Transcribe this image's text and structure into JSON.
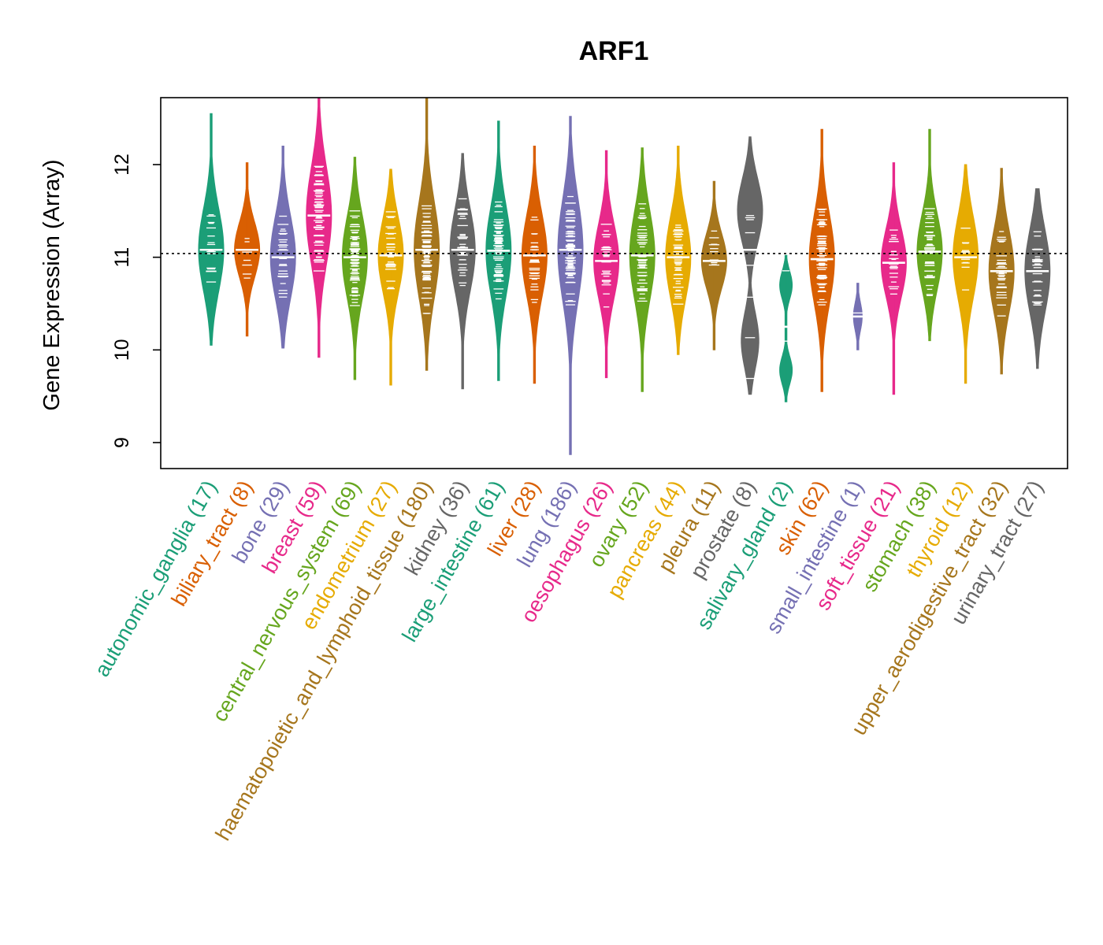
{
  "chart_data": {
    "type": "violin",
    "title": "ARF1",
    "xlabel": "",
    "ylabel": "Gene Expression (Array)",
    "ylim": [
      8.7,
      12.72
    ],
    "yticks": [
      9,
      10,
      11,
      12
    ],
    "yticklabels": [
      "9",
      "10",
      "11",
      "12"
    ],
    "reference_line": 11.04,
    "grid": false,
    "legend": "none",
    "categories": [
      {
        "name": "autonomic_ganglia",
        "n": 17,
        "label": "autonomic_ganglia (17)",
        "color": "#1b9e77",
        "min": 10.05,
        "max": 12.55,
        "median": 11.08,
        "q1": 10.75,
        "q3": 11.35
      },
      {
        "name": "biliary_tract",
        "n": 8,
        "label": "biliary_tract (8)",
        "color": "#d95f02",
        "min": 10.15,
        "max": 12.02,
        "median": 11.08,
        "q1": 10.85,
        "q3": 11.25
      },
      {
        "name": "bone",
        "n": 29,
        "label": "bone (29)",
        "color": "#7570b3",
        "min": 10.02,
        "max": 12.2,
        "median": 11.0,
        "q1": 10.7,
        "q3": 11.3
      },
      {
        "name": "breast",
        "n": 59,
        "label": "breast (59)",
        "color": "#e7298a",
        "min": 9.92,
        "max": 12.72,
        "median": 11.45,
        "q1": 11.1,
        "q3": 11.8
      },
      {
        "name": "central_nervous_system",
        "n": 69,
        "label": "central_nervous_system (69)",
        "color": "#66a61e",
        "min": 9.68,
        "max": 12.08,
        "median": 11.0,
        "q1": 10.7,
        "q3": 11.3
      },
      {
        "name": "endometrium",
        "n": 27,
        "label": "endometrium (27)",
        "color": "#e6ab02",
        "min": 9.62,
        "max": 11.95,
        "median": 11.02,
        "q1": 10.75,
        "q3": 11.3
      },
      {
        "name": "haematopoietic_and_lymphoid_tissue",
        "n": 180,
        "label": "haematopoietic_and_lymphoid_tissue (180)",
        "color": "#a6761d",
        "min": 9.78,
        "max": 12.72,
        "median": 11.08,
        "q1": 10.7,
        "q3": 11.4
      },
      {
        "name": "kidney",
        "n": 36,
        "label": "kidney (36)",
        "color": "#666666",
        "min": 9.58,
        "max": 12.12,
        "median": 11.08,
        "q1": 10.8,
        "q3": 11.4
      },
      {
        "name": "large_intestine",
        "n": 61,
        "label": "large_intestine (61)",
        "color": "#1b9e77",
        "min": 9.67,
        "max": 12.47,
        "median": 11.07,
        "q1": 10.75,
        "q3": 11.4
      },
      {
        "name": "liver",
        "n": 28,
        "label": "liver (28)",
        "color": "#d95f02",
        "min": 9.64,
        "max": 12.2,
        "median": 11.02,
        "q1": 10.7,
        "q3": 11.3
      },
      {
        "name": "lung",
        "n": 186,
        "label": "lung (186)",
        "color": "#7570b3",
        "min": 8.87,
        "max": 12.52,
        "median": 11.08,
        "q1": 10.7,
        "q3": 11.45
      },
      {
        "name": "oesophagus",
        "n": 26,
        "label": "oesophagus (26)",
        "color": "#e7298a",
        "min": 9.7,
        "max": 12.15,
        "median": 10.96,
        "q1": 10.7,
        "q3": 11.25
      },
      {
        "name": "ovary",
        "n": 52,
        "label": "ovary (52)",
        "color": "#66a61e",
        "min": 9.55,
        "max": 12.18,
        "median": 11.02,
        "q1": 10.7,
        "q3": 11.35
      },
      {
        "name": "pancreas",
        "n": 44,
        "label": "pancreas (44)",
        "color": "#e6ab02",
        "min": 9.95,
        "max": 12.2,
        "median": 11.0,
        "q1": 10.7,
        "q3": 11.3
      },
      {
        "name": "pleura",
        "n": 11,
        "label": "pleura (11)",
        "color": "#a6761d",
        "min": 10.0,
        "max": 11.82,
        "median": 10.96,
        "q1": 10.75,
        "q3": 11.15
      },
      {
        "name": "prostate",
        "n": 8,
        "label": "prostate (8)",
        "color": "#666666",
        "min": 9.52,
        "max": 12.3,
        "median": 11.08,
        "q1": 10.15,
        "q3": 11.7
      },
      {
        "name": "salivary_gland",
        "n": 2,
        "label": "salivary_gland (2)",
        "color": "#1b9e77",
        "min": 9.44,
        "max": 11.02,
        "median": 10.25,
        "q1": 9.78,
        "q3": 10.7
      },
      {
        "name": "skin",
        "n": 62,
        "label": "skin (62)",
        "color": "#d95f02",
        "min": 9.55,
        "max": 12.38,
        "median": 10.98,
        "q1": 10.7,
        "q3": 11.35
      },
      {
        "name": "small_intestine",
        "n": 1,
        "label": "small_intestine (1)",
        "color": "#7570b3",
        "min": 10.0,
        "max": 10.72,
        "median": 10.36,
        "q1": 10.3,
        "q3": 10.42
      },
      {
        "name": "soft_tissue",
        "n": 21,
        "label": "soft_tissue (21)",
        "color": "#e7298a",
        "min": 9.52,
        "max": 12.02,
        "median": 10.94,
        "q1": 10.7,
        "q3": 11.2
      },
      {
        "name": "stomach",
        "n": 38,
        "label": "stomach (38)",
        "color": "#66a61e",
        "min": 10.1,
        "max": 12.38,
        "median": 11.06,
        "q1": 10.8,
        "q3": 11.35
      },
      {
        "name": "thyroid",
        "n": 12,
        "label": "thyroid (12)",
        "color": "#e6ab02",
        "min": 9.64,
        "max": 12.0,
        "median": 11.0,
        "q1": 10.7,
        "q3": 11.3
      },
      {
        "name": "upper_aerodigestive_tract",
        "n": 32,
        "label": "upper_aerodigestive_tract (32)",
        "color": "#a6761d",
        "min": 9.74,
        "max": 11.96,
        "median": 10.85,
        "q1": 10.55,
        "q3": 11.15
      },
      {
        "name": "urinary_tract",
        "n": 27,
        "label": "urinary_tract (27)",
        "color": "#666666",
        "min": 9.8,
        "max": 11.74,
        "median": 10.85,
        "q1": 10.5,
        "q3": 11.1
      }
    ]
  }
}
